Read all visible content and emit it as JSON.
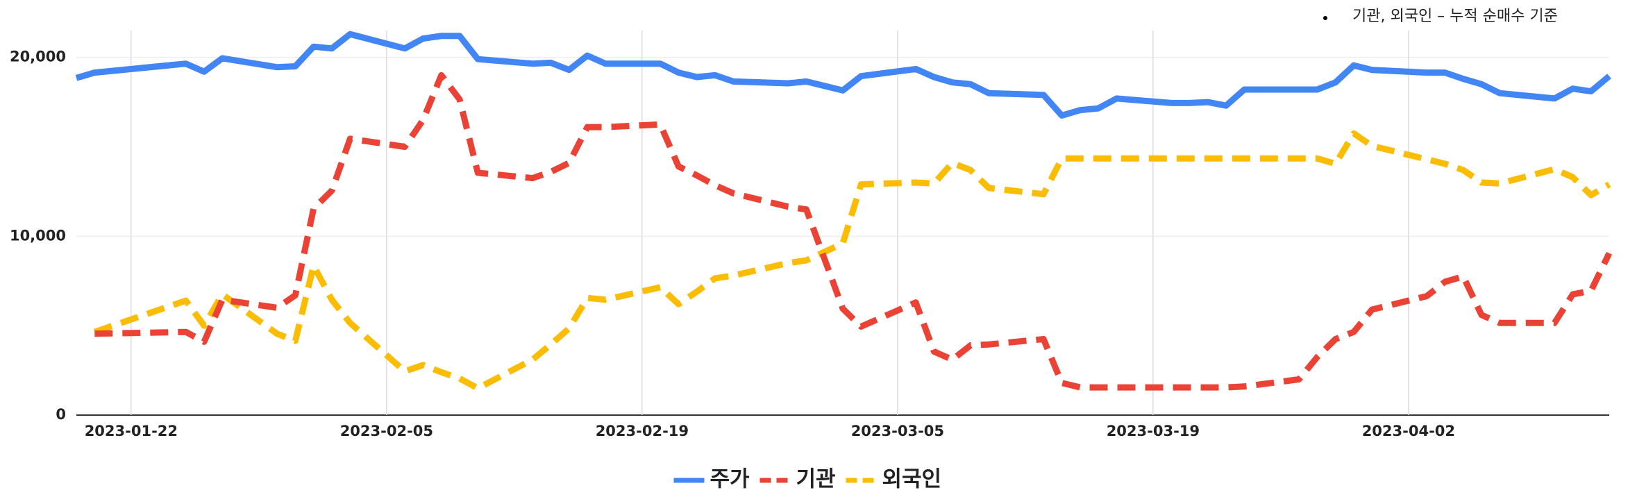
{
  "chart_data": {
    "type": "line",
    "note": "기관, 외국인 – 누적 순매수 기준",
    "x": [
      "2023-01-19",
      "2023-01-20",
      "2023-01-25",
      "2023-01-26",
      "2023-01-27",
      "2023-01-30",
      "2023-01-31",
      "2023-02-01",
      "2023-02-02",
      "2023-02-03",
      "2023-02-06",
      "2023-02-07",
      "2023-02-08",
      "2023-02-09",
      "2023-02-10",
      "2023-02-13",
      "2023-02-14",
      "2023-02-15",
      "2023-02-16",
      "2023-02-17",
      "2023-02-20",
      "2023-02-21",
      "2023-02-22",
      "2023-02-23",
      "2023-02-24",
      "2023-02-27",
      "2023-02-28",
      "2023-03-02",
      "2023-03-03",
      "2023-03-06",
      "2023-03-07",
      "2023-03-08",
      "2023-03-09",
      "2023-03-10",
      "2023-03-13",
      "2023-03-14",
      "2023-03-15",
      "2023-03-16",
      "2023-03-17",
      "2023-03-20",
      "2023-03-21",
      "2023-03-22",
      "2023-03-23",
      "2023-03-24",
      "2023-03-27",
      "2023-03-28",
      "2023-03-29",
      "2023-03-30",
      "2023-03-31",
      "2023-04-03",
      "2023-04-04",
      "2023-04-05",
      "2023-04-06",
      "2023-04-07",
      "2023-04-10",
      "2023-04-11",
      "2023-04-12",
      "2023-04-13"
    ],
    "series": [
      {
        "name": "주가",
        "color": "#4285f4",
        "dash": false,
        "values": [
          18850,
          19150,
          19650,
          19200,
          19950,
          19450,
          19500,
          20600,
          20500,
          21300,
          20500,
          21050,
          21200,
          21200,
          19900,
          19650,
          19700,
          19300,
          20100,
          19650,
          19650,
          19150,
          18900,
          19000,
          18650,
          18550,
          18650,
          18150,
          18950,
          19350,
          18900,
          18600,
          18500,
          18000,
          17900,
          16750,
          17050,
          17150,
          17700,
          17450,
          17450,
          17500,
          17300,
          18200,
          18200,
          18200,
          18600,
          19550,
          19300,
          19150,
          19150,
          18800,
          18500,
          18000,
          17700,
          18250,
          18100,
          18950
        ]
      },
      {
        "name": "기관",
        "color": "#ea4335",
        "dash": true,
        "values": [
          null,
          4550,
          4650,
          4100,
          6450,
          6000,
          6700,
          11550,
          12550,
          15450,
          15000,
          16500,
          19000,
          17650,
          13550,
          13250,
          13600,
          14100,
          16100,
          16100,
          16250,
          13900,
          13400,
          12850,
          12400,
          11650,
          11500,
          5950,
          4950,
          6300,
          3550,
          3100,
          3900,
          3950,
          4250,
          1800,
          1550,
          1550,
          1550,
          1550,
          1550,
          1550,
          1550,
          1600,
          2000,
          3250,
          4250,
          4650,
          5900,
          6650,
          7450,
          7750,
          5600,
          5150,
          5150,
          6750,
          6950,
          9050
        ]
      },
      {
        "name": "외국인",
        "color": "#fbbc04",
        "dash": true,
        "values": [
          null,
          4650,
          6400,
          5000,
          6750,
          4550,
          4150,
          8350,
          6450,
          5150,
          2450,
          2800,
          2400,
          2050,
          1500,
          3100,
          3950,
          4850,
          6550,
          6450,
          7150,
          6200,
          6900,
          7650,
          7800,
          8500,
          8650,
          9600,
          12900,
          13000,
          12950,
          14100,
          13700,
          12700,
          12350,
          14350,
          14350,
          14350,
          14350,
          14350,
          14350,
          14350,
          14350,
          14350,
          14350,
          14350,
          14050,
          15750,
          15050,
          14300,
          14050,
          13700,
          13000,
          12950,
          13750,
          13300,
          12300,
          12900
        ]
      }
    ],
    "xlim": [
      "2023-01-19",
      "2023-04-13"
    ],
    "xticks": [
      "2023-01-22",
      "2023-02-05",
      "2023-02-19",
      "2023-03-05",
      "2023-03-19",
      "2023-04-02"
    ],
    "ylim": [
      0,
      21500
    ],
    "yticks": [
      0,
      {
        "value": 10000,
        "label": "10,000"
      },
      {
        "value": 20000,
        "label": "20,000"
      }
    ],
    "grid": true,
    "legend": "bottom"
  }
}
